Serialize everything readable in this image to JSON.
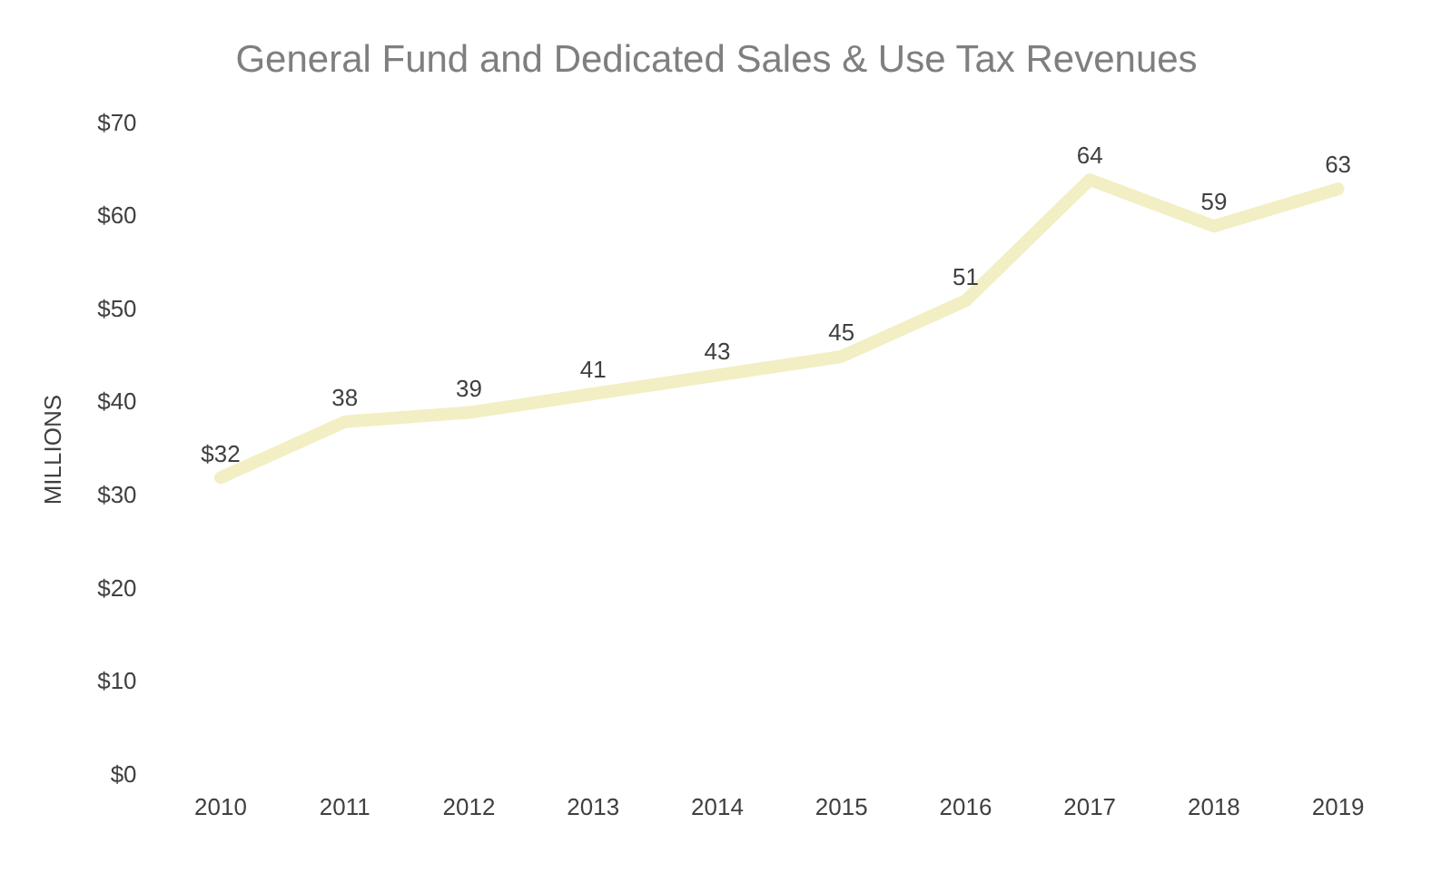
{
  "chart_data": {
    "type": "line",
    "title": "General Fund and Dedicated Sales & Use Tax Revenues",
    "ylabel": "MILLIONS",
    "categories": [
      "2010",
      "2011",
      "2012",
      "2013",
      "2014",
      "2015",
      "2016",
      "2017",
      "2018",
      "2019"
    ],
    "series": [
      {
        "color": "#f3efc4",
        "values": [
          32,
          38,
          39,
          41,
          43,
          45,
          51,
          64,
          59,
          63
        ],
        "value_labels": [
          "$32",
          "38",
          "39",
          "41",
          "43",
          "45",
          "51",
          "64",
          "59",
          "63"
        ]
      }
    ],
    "ylim": [
      0,
      70
    ],
    "yticks": [
      {
        "value": 0,
        "label": "$0"
      },
      {
        "value": 10,
        "label": "$10"
      },
      {
        "value": 20,
        "label": "$20"
      },
      {
        "value": 30,
        "label": "$30"
      },
      {
        "value": 40,
        "label": "$40"
      },
      {
        "value": 50,
        "label": "$50"
      },
      {
        "value": 60,
        "label": "$60"
      },
      {
        "value": 70,
        "label": "$70"
      }
    ],
    "grid": false,
    "legend": false,
    "marker": "none",
    "line_style": "solid"
  }
}
